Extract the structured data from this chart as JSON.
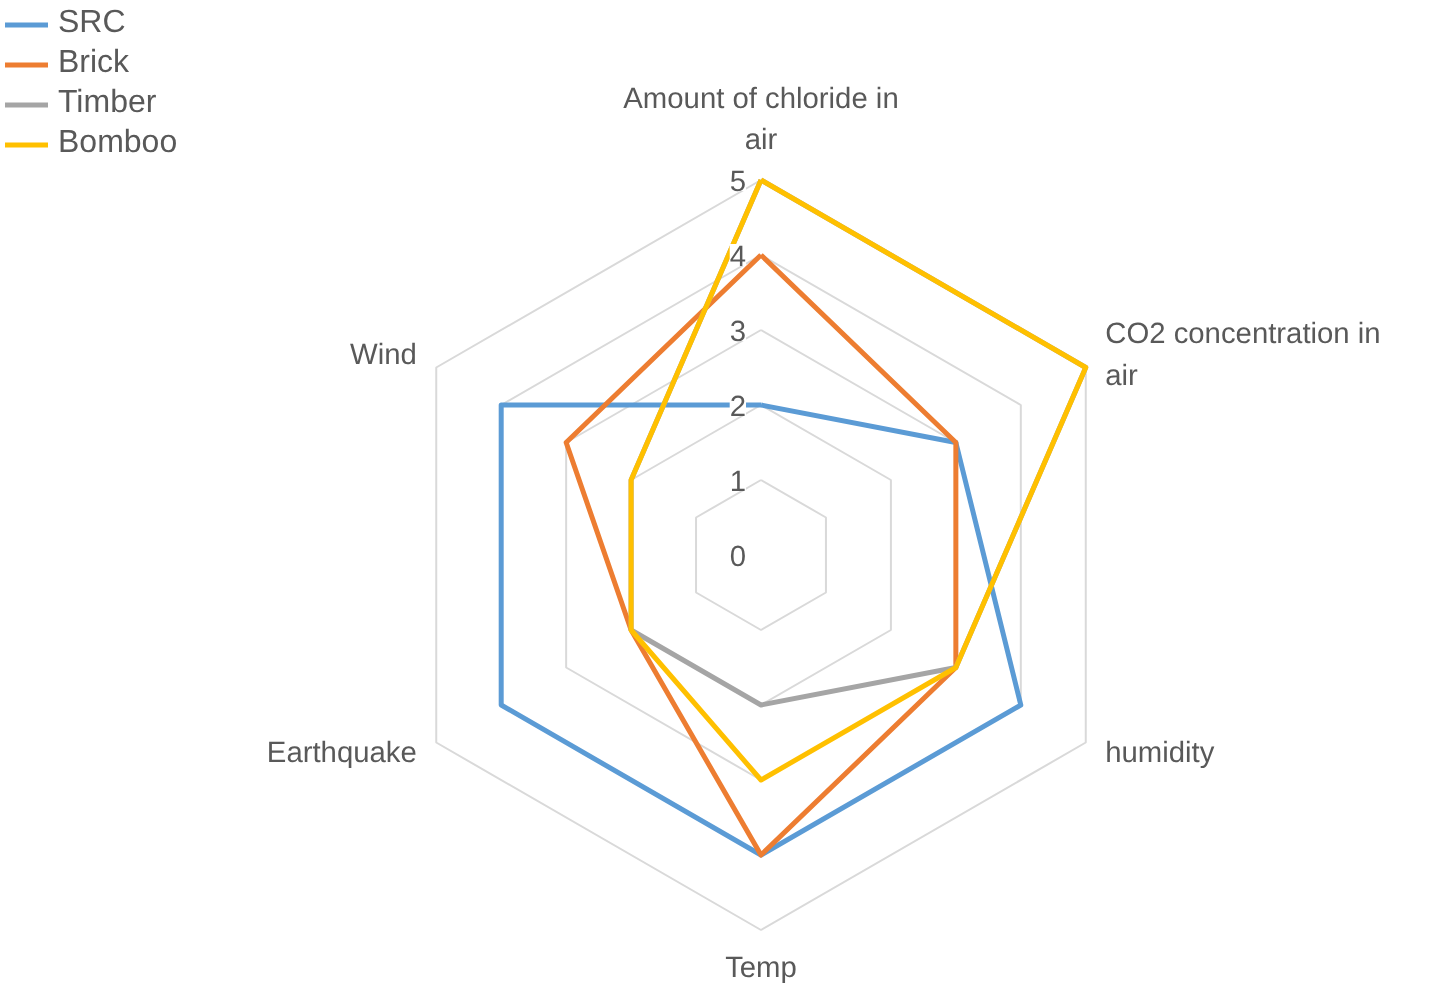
{
  "chart_data": {
    "type": "radar",
    "categories": [
      "Amount of chloride in air",
      "CO2 concentration in air",
      "humidity",
      "Temp",
      "Earthquake",
      "Wind"
    ],
    "series": [
      {
        "name": "SRC",
        "color": "#5b9bd5",
        "values": [
          2,
          3,
          4,
          4,
          4,
          4
        ]
      },
      {
        "name": "Brick",
        "color": "#ed7d31",
        "values": [
          4,
          3,
          3,
          4,
          2,
          3
        ]
      },
      {
        "name": "Timber",
        "color": "#a5a5a5",
        "values": [
          5,
          5,
          3,
          2,
          2,
          2
        ]
      },
      {
        "name": "Bomboo",
        "color": "#ffc000",
        "values": [
          5,
          5,
          3,
          3,
          2,
          2
        ]
      }
    ],
    "ylim": [
      0,
      5
    ],
    "yticks": [
      0,
      1,
      2,
      3,
      4,
      5
    ],
    "grid": true,
    "legend": "top left"
  }
}
